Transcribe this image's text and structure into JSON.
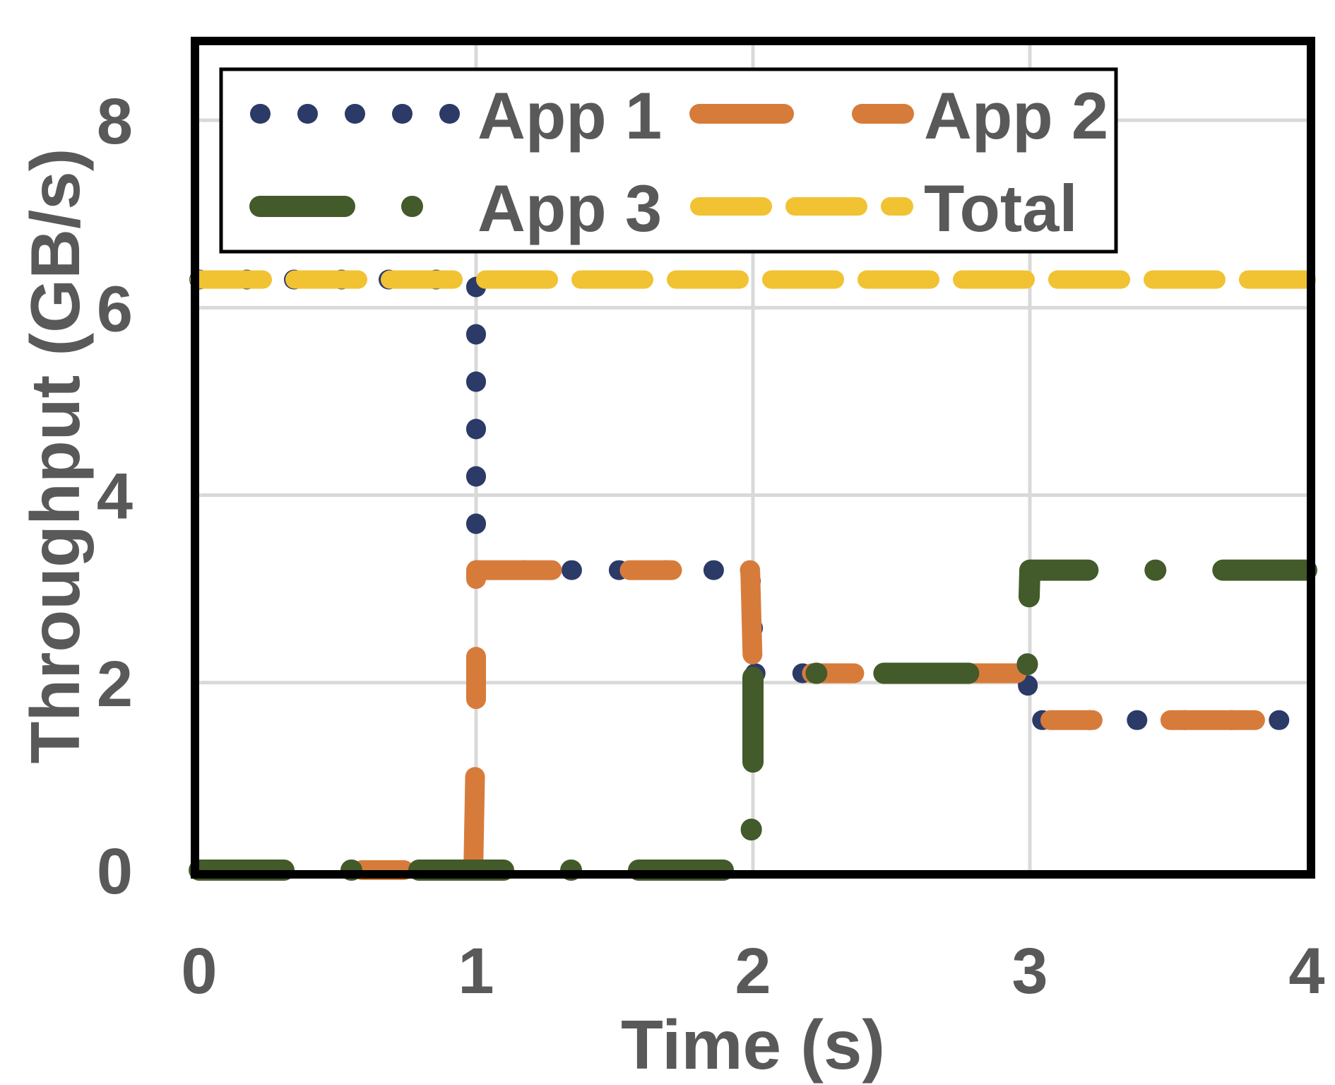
{
  "chart_data": {
    "type": "line",
    "title": "",
    "xlabel": "Time (s)",
    "ylabel": "Throughput (GB/s)",
    "xlim": [
      0,
      4
    ],
    "ylim": [
      0,
      8.8
    ],
    "xticks": [
      "0",
      "1",
      "2",
      "3",
      "4"
    ],
    "yticks": [
      "0",
      "2",
      "4",
      "6",
      "8"
    ],
    "grid": true,
    "legend_position": "top",
    "series": [
      {
        "name": "App 1",
        "style": "dotted",
        "color": "#2b3a67",
        "x": [
          0,
          1,
          1,
          1.99,
          2.0,
          2.0,
          2.99,
          3.0,
          3.0,
          4.0
        ],
        "y": [
          6.3,
          6.3,
          3.2,
          3.2,
          2.7,
          2.1,
          2.1,
          1.6,
          1.6,
          1.6
        ]
      },
      {
        "name": "App 2",
        "style": "dash-dot",
        "color": "#d77b3a",
        "x": [
          0,
          0.99,
          1.0,
          1.0,
          1.99,
          2.0,
          2.0,
          2.99,
          3.0,
          3.0,
          4.0
        ],
        "y": [
          0,
          0,
          1.6,
          3.2,
          3.2,
          2.1,
          2.1,
          2.1,
          1.6,
          1.6,
          1.6
        ]
      },
      {
        "name": "App 3",
        "style": "long-dash-dot",
        "color": "#435a2a",
        "x": [
          0,
          1.99,
          2.0,
          2.0,
          2.99,
          3.0,
          3.0,
          4.0
        ],
        "y": [
          0,
          0,
          1.1,
          2.1,
          2.1,
          3.2,
          3.2,
          3.2
        ]
      },
      {
        "name": "Total",
        "style": "dashed",
        "color": "#f1c232",
        "x": [
          0,
          4
        ],
        "y": [
          6.3,
          6.3
        ]
      }
    ]
  }
}
